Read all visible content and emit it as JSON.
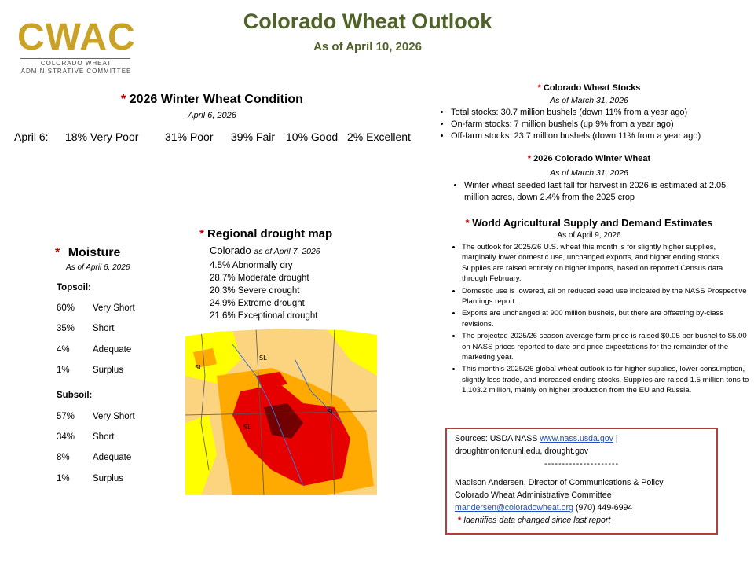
{
  "logo": {
    "word": "CWAC",
    "line1": "COLORADO WHEAT",
    "line2": "ADMINISTRATIVE COMMITTEE"
  },
  "header": {
    "title": "Colorado Wheat Outlook",
    "subtitle": "As of April 10, 2026"
  },
  "condition": {
    "star": "*",
    "heading": "2026 Winter Wheat Condition",
    "date": "April 6, 2026",
    "row_label": "April 6:",
    "ratings": [
      "18% Very Poor",
      "31% Poor",
      "39% Fair",
      "10% Good",
      "2% Excellent"
    ]
  },
  "moisture": {
    "star": "*",
    "heading": "Moisture",
    "date": "As of April 6, 2026",
    "topsoil_label": "Topsoil:",
    "topsoil": [
      {
        "pct": "60%",
        "label": "Very Short"
      },
      {
        "pct": "35%",
        "label": "Short"
      },
      {
        "pct": "4%",
        "label": "Adequate"
      },
      {
        "pct": "1%",
        "label": "Surplus"
      }
    ],
    "subsoil_label": "Subsoil:",
    "subsoil": [
      {
        "pct": "57%",
        "label": "Very Short"
      },
      {
        "pct": "34%",
        "label": "Short"
      },
      {
        "pct": "8%",
        "label": "Adequate"
      },
      {
        "pct": "1%",
        "label": "Surplus"
      }
    ]
  },
  "drought": {
    "star": "*",
    "heading": "Regional drought map",
    "region": "Colorado",
    "date": "as of April 7, 2026",
    "items": [
      "4.5%   Abnormally dry",
      "28.7%  Moderate drought",
      "20.3%  Severe drought",
      "24.9%  Extreme drought",
      "21.6%  Exceptional drought"
    ],
    "map_labels": [
      "SL",
      "SL",
      "SL",
      "SL"
    ],
    "colors": {
      "d0": "#ffff00",
      "d1": "#fcd37f",
      "d2": "#ffaa00",
      "d3": "#e60000",
      "d4": "#730000"
    }
  },
  "stocks": {
    "star": "*",
    "heading": "Colorado Wheat Stocks",
    "date": "As of March 31, 2026",
    "items": [
      "Total stocks: 30.7 million bushels (down 11% from a year ago)",
      "On-farm stocks: 7 million bushels (up 9% from a year ago)",
      "Off-farm stocks: 23.7 million bushels (down 11% from a year ago)"
    ]
  },
  "winter_wheat": {
    "star": "*",
    "heading": "2026 Colorado Winter Wheat",
    "date": "As of March 31, 2026",
    "items": [
      "Winter wheat seeded last fall for harvest in 2026 is estimated at 2.05 million acres, down 2.4% from the 2025 crop"
    ]
  },
  "wasde": {
    "star": "*",
    "heading": "World Agricultural Supply and Demand Estimates",
    "date": "As of April 9, 2026",
    "items": [
      "The outlook for 2025/26 U.S. wheat this month is for slightly higher supplies, marginally lower domestic use, unchanged exports, and higher ending stocks. Supplies are raised entirely on higher imports, based on reported Census data through February.",
      "Domestic use is lowered, all on reduced seed use indicated by the NASS Prospective Plantings report.",
      "Exports are unchanged at 900 million bushels, but there are offsetting by-class revisions.",
      "The projected 2025/26 season-average farm price is raised $0.05 per bushel to $5.00 on NASS prices reported to date and price expectations for the remainder of the marketing year.",
      "This month's 2025/26 global wheat outlook is for higher supplies, lower consumption, slightly less trade, and increased ending stocks. Supplies are raised 1.5 million tons to 1,103.2 million, mainly on higher production from the EU and Russia."
    ]
  },
  "sources": {
    "prefix": "Sources: USDA NASS ",
    "link1": "www.nass.usda.gov",
    "after_link1": " |",
    "line2": "droughtmonitor.unl.edu, drought.gov",
    "divider": "---------------------",
    "contact_name": "Madison Andersen, Director of Communications & Policy",
    "contact_org": "Colorado Wheat Administrative Committee",
    "email": "mandersen@coloradowheat.org",
    "phone": " (970) 449-6994",
    "star": "*",
    "footnote": "Identifies data changed since last report"
  }
}
